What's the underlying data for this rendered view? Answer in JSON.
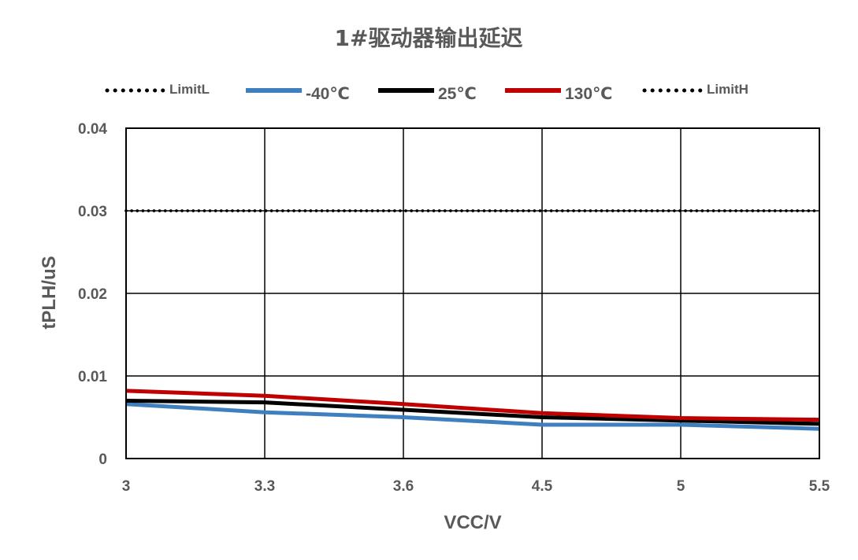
{
  "chart_data": {
    "type": "line",
    "title": "1#驱动器输出延迟",
    "xlabel": "VCC/V",
    "ylabel": "tPLH/uS",
    "categories": [
      "3",
      "3.3",
      "3.6",
      "4.5",
      "5",
      "5.5"
    ],
    "ylim": [
      0,
      0.04
    ],
    "yticks": [
      "0",
      "0.01",
      "0.02",
      "0.03",
      "0.04"
    ],
    "grid": true,
    "legend_position": "top",
    "series": [
      {
        "name": "LimitL",
        "values": [
          0.03,
          0.03,
          0.03,
          0.03,
          0.03,
          0.03
        ],
        "color": "#000000",
        "style": "dotted"
      },
      {
        "name": "-40℃",
        "values": [
          0.0066,
          0.0056,
          0.005,
          0.0041,
          0.0041,
          0.0036
        ],
        "color": "#3F7FBF",
        "style": "solid"
      },
      {
        "name": "25℃",
        "values": [
          0.007,
          0.0068,
          0.0059,
          0.005,
          0.0046,
          0.0042
        ],
        "color": "#000000",
        "style": "solid"
      },
      {
        "name": "130℃",
        "values": [
          0.0082,
          0.0076,
          0.0066,
          0.0055,
          0.0049,
          0.0047
        ],
        "color": "#C00000",
        "style": "solid"
      },
      {
        "name": "LimitH",
        "values": [
          0.03,
          0.03,
          0.03,
          0.03,
          0.03,
          0.03
        ],
        "color": "#000000",
        "style": "dotted"
      }
    ]
  }
}
